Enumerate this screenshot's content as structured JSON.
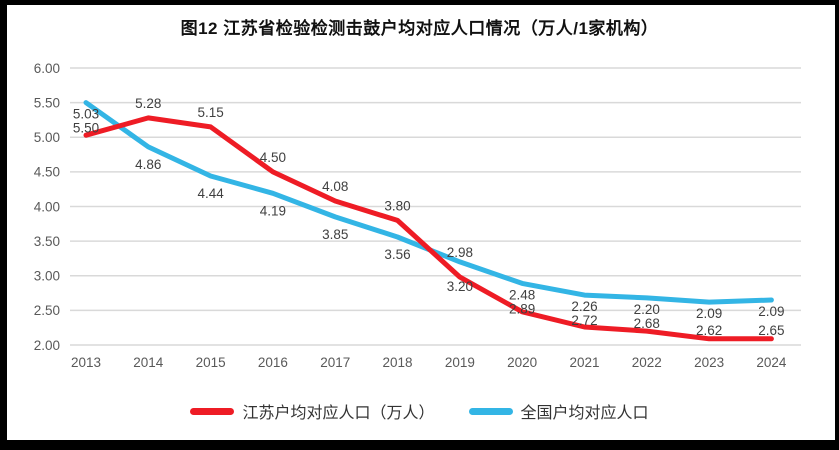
{
  "title": "图12  江苏省检验检测击鼓户均对应人口情况（万人/1家机构）",
  "colors": {
    "frame_border": "#000000",
    "canvas_background": "#ffffff",
    "gridline": "#d9d9d9",
    "axis_text": "#595959",
    "data_label_text": "#404040",
    "red_series": "#ee1c25",
    "blue_series": "#33b5e5"
  },
  "chart_data": {
    "type": "line",
    "title": "图12  江苏省检验检测击鼓户均对应人口情况（万人/1家机构）",
    "categories": [
      "2013",
      "2014",
      "2015",
      "2016",
      "2017",
      "2018",
      "2019",
      "2020",
      "2021",
      "2022",
      "2023",
      "2024"
    ],
    "series": [
      {
        "name": "江苏户均对应人口（万人）",
        "color": "#ee1c25",
        "values": [
          5.03,
          5.28,
          5.15,
          4.5,
          4.08,
          3.8,
          2.98,
          2.48,
          2.26,
          2.2,
          2.09,
          2.09
        ]
      },
      {
        "name": "全国户均对应人口",
        "color": "#33b5e5",
        "values": [
          5.5,
          4.86,
          4.44,
          4.19,
          3.85,
          3.56,
          3.2,
          2.89,
          2.72,
          2.68,
          2.62,
          2.65
        ]
      }
    ],
    "ylim": [
      2.0,
      6.0
    ],
    "ytick_step": 0.5,
    "yticks": [
      "6.00",
      "5.50",
      "5.00",
      "4.50",
      "4.00",
      "3.50",
      "3.00",
      "2.50",
      "2.00"
    ],
    "grid": "horizontal",
    "legend_position": "bottom",
    "data_labels": true,
    "xlabel": "",
    "ylabel": ""
  },
  "legend": {
    "items": [
      {
        "label": "江苏户均对应人口（万人）",
        "color": "#ee1c25"
      },
      {
        "label": "全国户均对应人口",
        "color": "#33b5e5"
      }
    ]
  }
}
